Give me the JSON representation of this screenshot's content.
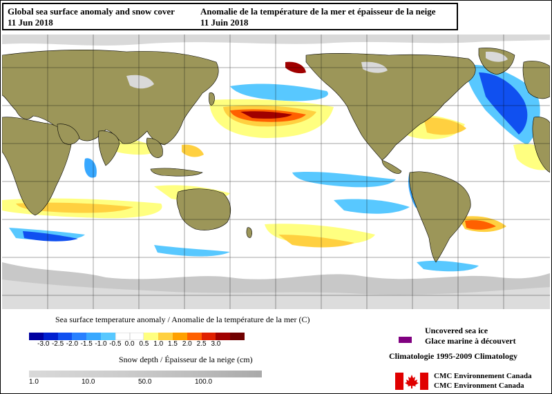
{
  "header": {
    "title_en": "Global sea surface anomaly and snow cover",
    "date_en": "11 Jun 2018",
    "title_fr": "Anomalie de la température de la mer et épaisseur de la neige",
    "date_fr": "11 Juin 2018"
  },
  "legend": {
    "sst_title": "Sea surface temperature anomaly / Anomalie de la température de la mer (C)",
    "sst_colors": [
      "#0000a0",
      "#0020d0",
      "#1050f0",
      "#2880ff",
      "#38a8ff",
      "#58c8ff",
      "#ffffff",
      "#ffffff",
      "#ffff80",
      "#ffd040",
      "#ffa000",
      "#ff6000",
      "#e02000",
      "#a00000",
      "#700000"
    ],
    "sst_ticks": [
      "-3.0",
      "-2.5",
      "-2.0",
      "-1.5",
      "-1.0",
      "-0.5",
      "0.0",
      "0.5",
      "1.0",
      "1.5",
      "2.0",
      "2.5",
      "3.0"
    ],
    "snow_title": "Snow depth / Épaisseur de la neige (cm)",
    "snow_ticks": [
      "1.0",
      "10.0",
      "50.0",
      "100.0"
    ],
    "ice_en": "Uncovered sea ice",
    "ice_fr": "Glace marine à découvert",
    "ice_color": "#800080",
    "climatology": "Climatologie 1995-2009 Climatology"
  },
  "credit": {
    "fr": "CMC Environnement Canada",
    "en": "CMC Environment Canada"
  },
  "map": {
    "ocean_color": "#ffffff",
    "land_color": "#9c9659",
    "snow_color": "#d9d9d9",
    "ice_color": "#bfbfbf"
  }
}
